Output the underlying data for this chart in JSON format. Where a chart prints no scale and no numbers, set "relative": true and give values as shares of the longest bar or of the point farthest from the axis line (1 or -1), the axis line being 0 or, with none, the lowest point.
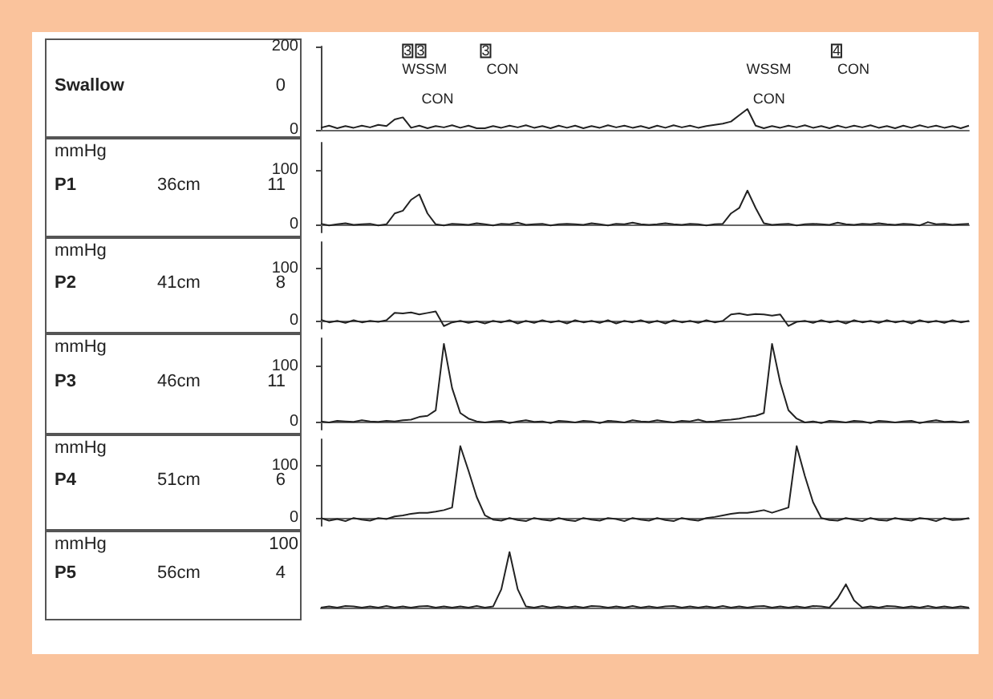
{
  "chart_data": [
    {
      "type": "line",
      "annotations": [
        "Swallow",
        "0",
        "3",
        "3",
        "WSSM",
        "CON",
        "3",
        "CON",
        "WSSM",
        "CON",
        "4",
        "CON"
      ],
      "categories": [
        null,
        null,
        null,
        null,
        null,
        null,
        null,
        null,
        null,
        null,
        null,
        null,
        null,
        null,
        null,
        null,
        null,
        null,
        null,
        null,
        null,
        null,
        null,
        null,
        null,
        null,
        null,
        null,
        null,
        null,
        null,
        null,
        null,
        null,
        null,
        null,
        null,
        null,
        null,
        null,
        null,
        null,
        null,
        null,
        null,
        null,
        null,
        null,
        null,
        null,
        null,
        null,
        null,
        null,
        null,
        null,
        null,
        null,
        null,
        null,
        null,
        null,
        null,
        null,
        null,
        null,
        null,
        null,
        null,
        null,
        null,
        null,
        null,
        null,
        null,
        null,
        null,
        null,
        null,
        null
      ],
      "color": "#222222",
      "tick_labels": "y",
      "ylim": [
        0,
        200
      ],
      "yticks": [
        0,
        200
      ],
      "values": [
        5,
        10,
        4,
        9,
        5,
        10,
        6,
        12,
        9,
        25,
        30,
        5,
        10,
        4,
        9,
        6,
        11,
        5,
        10,
        4,
        4,
        9,
        5,
        10,
        6,
        11,
        5,
        9,
        4,
        10,
        5,
        10,
        4,
        9,
        5,
        11,
        6,
        10,
        5,
        9,
        4,
        10,
        5,
        11,
        6,
        10,
        5,
        9,
        12,
        15,
        20,
        35,
        50,
        10,
        4,
        9,
        5,
        10,
        6,
        11,
        5,
        9,
        4,
        10,
        5,
        10,
        6,
        11,
        5,
        9,
        4,
        10,
        5,
        11,
        6,
        10,
        5,
        9,
        4,
        10
      ]
    },
    {
      "type": "line",
      "ylabel": "mmHg",
      "annotations": [
        "P1",
        "36cm",
        "11"
      ],
      "categories": [
        null,
        null,
        null,
        null,
        null,
        null,
        null,
        null,
        null,
        null,
        null,
        null,
        null,
        null,
        null,
        null,
        null,
        null,
        null,
        null,
        null,
        null,
        null,
        null,
        null,
        null,
        null,
        null,
        null,
        null,
        null,
        null,
        null,
        null,
        null,
        null,
        null,
        null,
        null,
        null,
        null,
        null,
        null,
        null,
        null,
        null,
        null,
        null,
        null,
        null,
        null,
        null,
        null,
        null,
        null,
        null,
        null,
        null,
        null,
        null,
        null,
        null,
        null,
        null,
        null,
        null,
        null,
        null,
        null,
        null,
        null,
        null,
        null,
        null,
        null,
        null,
        null,
        null,
        null,
        null
      ],
      "color": "#222222",
      "tick_labels": "y",
      "ylim": [
        -15,
        150
      ],
      "yticks": [
        0,
        100
      ],
      "values": [
        1,
        -2,
        0,
        2,
        -1,
        0,
        1,
        -2,
        0,
        20,
        25,
        45,
        55,
        20,
        0,
        -2,
        1,
        0,
        -1,
        2,
        0,
        -2,
        1,
        0,
        3,
        -1,
        0,
        1,
        -2,
        0,
        1,
        0,
        -1,
        2,
        0,
        -2,
        1,
        0,
        3,
        0,
        -1,
        0,
        2,
        0,
        -1,
        1,
        0,
        -2,
        0,
        1,
        20,
        30,
        62,
        30,
        2,
        -1,
        0,
        1,
        -2,
        0,
        1,
        0,
        -1,
        3,
        0,
        -1,
        1,
        0,
        2,
        0,
        -1,
        1,
        0,
        -2,
        4,
        0,
        1,
        -1,
        0,
        1
      ]
    },
    {
      "type": "line",
      "ylabel": "mmHg",
      "annotations": [
        "P2",
        "41cm",
        "8"
      ],
      "categories": [
        null,
        null,
        null,
        null,
        null,
        null,
        null,
        null,
        null,
        null,
        null,
        null,
        null,
        null,
        null,
        null,
        null,
        null,
        null,
        null,
        null,
        null,
        null,
        null,
        null,
        null,
        null,
        null,
        null,
        null,
        null,
        null,
        null,
        null,
        null,
        null,
        null,
        null,
        null,
        null,
        null,
        null,
        null,
        null,
        null,
        null,
        null,
        null,
        null,
        null,
        null,
        null,
        null,
        null,
        null,
        null,
        null,
        null,
        null,
        null,
        null,
        null,
        null,
        null,
        null,
        null,
        null,
        null,
        null,
        null,
        null,
        null,
        null,
        null,
        null,
        null,
        null,
        null,
        null,
        null
      ],
      "color": "#222222",
      "tick_labels": "y",
      "ylim": [
        -15,
        150
      ],
      "yticks": [
        0,
        100
      ],
      "values": [
        2,
        -3,
        0,
        -4,
        1,
        -3,
        0,
        -2,
        1,
        15,
        14,
        16,
        12,
        15,
        18,
        -10,
        -3,
        0,
        -4,
        -1,
        -5,
        0,
        -3,
        1,
        -5,
        0,
        -4,
        1,
        -3,
        0,
        -5,
        1,
        -3,
        0,
        -4,
        1,
        -5,
        0,
        -3,
        1,
        -4,
        0,
        -5,
        1,
        -3,
        0,
        -4,
        1,
        -3,
        0,
        12,
        14,
        11,
        13,
        12,
        10,
        12,
        -10,
        -2,
        0,
        -4,
        1,
        -3,
        0,
        -5,
        1,
        -3,
        0,
        -4,
        1,
        -3,
        0,
        -5,
        1,
        -3,
        0,
        -4,
        1,
        -3,
        0
      ]
    },
    {
      "type": "line",
      "ylabel": "mmHg",
      "annotations": [
        "P3",
        "46cm",
        "11"
      ],
      "categories": [
        null,
        null,
        null,
        null,
        null,
        null,
        null,
        null,
        null,
        null,
        null,
        null,
        null,
        null,
        null,
        null,
        null,
        null,
        null,
        null,
        null,
        null,
        null,
        null,
        null,
        null,
        null,
        null,
        null,
        null,
        null,
        null,
        null,
        null,
        null,
        null,
        null,
        null,
        null,
        null,
        null,
        null,
        null,
        null,
        null,
        null,
        null,
        null,
        null,
        null,
        null,
        null,
        null,
        null,
        null,
        null,
        null,
        null,
        null,
        null,
        null,
        null,
        null,
        null,
        null,
        null,
        null,
        null,
        null,
        null,
        null,
        null,
        null,
        null,
        null,
        null,
        null,
        null,
        null,
        null
      ],
      "color": "#222222",
      "tick_labels": "y",
      "ylim": [
        -15,
        150
      ],
      "yticks": [
        0,
        100
      ],
      "values": [
        0,
        -2,
        1,
        0,
        -1,
        2,
        0,
        -1,
        1,
        0,
        2,
        3,
        8,
        10,
        20,
        140,
        60,
        15,
        5,
        0,
        -2,
        0,
        1,
        -3,
        0,
        2,
        -1,
        0,
        -3,
        1,
        0,
        -2,
        1,
        0,
        -3,
        1,
        0,
        -2,
        2,
        0,
        -1,
        2,
        0,
        -2,
        1,
        0,
        3,
        -1,
        0,
        2,
        3,
        5,
        8,
        10,
        15,
        140,
        70,
        20,
        5,
        -2,
        0,
        -3,
        1,
        0,
        -2,
        1,
        0,
        -3,
        1,
        0,
        -2,
        0,
        1,
        -3,
        0,
        2,
        -1,
        0,
        -2,
        1
      ]
    },
    {
      "type": "line",
      "ylabel": "mmHg",
      "annotations": [
        "P4",
        "51cm",
        "6"
      ],
      "categories": [
        null,
        null,
        null,
        null,
        null,
        null,
        null,
        null,
        null,
        null,
        null,
        null,
        null,
        null,
        null,
        null,
        null,
        null,
        null,
        null,
        null,
        null,
        null,
        null,
        null,
        null,
        null,
        null,
        null,
        null,
        null,
        null,
        null,
        null,
        null,
        null,
        null,
        null,
        null,
        null,
        null,
        null,
        null,
        null,
        null,
        null,
        null,
        null,
        null,
        null,
        null,
        null,
        null,
        null,
        null,
        null,
        null,
        null,
        null,
        null,
        null,
        null,
        null,
        null,
        null,
        null,
        null,
        null,
        null,
        null,
        null,
        null,
        null,
        null,
        null,
        null,
        null,
        null,
        null,
        null
      ],
      "color": "#222222",
      "tick_labels": "y",
      "ylim": [
        -15,
        150
      ],
      "yticks": [
        0,
        100
      ],
      "values": [
        0,
        -5,
        -2,
        -6,
        0,
        -3,
        -5,
        0,
        -2,
        3,
        5,
        8,
        10,
        10,
        12,
        15,
        20,
        137,
        90,
        40,
        5,
        -3,
        -5,
        0,
        -4,
        -6,
        0,
        -3,
        -5,
        0,
        -4,
        -6,
        0,
        -3,
        -5,
        0,
        -2,
        -6,
        0,
        -3,
        -5,
        0,
        -4,
        -6,
        0,
        -3,
        -5,
        0,
        2,
        5,
        8,
        10,
        10,
        12,
        15,
        10,
        15,
        20,
        137,
        80,
        30,
        0,
        -4,
        -5,
        0,
        -3,
        -6,
        0,
        -4,
        -5,
        0,
        -3,
        -5,
        0,
        -2,
        -6,
        0,
        -4,
        -3,
        0
      ]
    },
    {
      "type": "line",
      "ylabel": "mmHg",
      "annotations": [
        "P5",
        "56cm",
        "4",
        "100"
      ],
      "relative": true,
      "categories": [
        null,
        null,
        null,
        null,
        null,
        null,
        null,
        null,
        null,
        null,
        null,
        null,
        null,
        null,
        null,
        null,
        null,
        null,
        null,
        null,
        null,
        null,
        null,
        null,
        null,
        null,
        null,
        null,
        null,
        null,
        null,
        null,
        null,
        null,
        null,
        null,
        null,
        null,
        null,
        null,
        null,
        null,
        null,
        null,
        null,
        null,
        null,
        null,
        null,
        null,
        null,
        null,
        null,
        null,
        null,
        null,
        null,
        null,
        null,
        null,
        null,
        null,
        null,
        null,
        null,
        null,
        null,
        null,
        null,
        null,
        null,
        null,
        null,
        null,
        null,
        null,
        null,
        null,
        null,
        null
      ],
      "color": "#222222",
      "values": [
        0,
        0.02,
        0,
        0.03,
        0.02,
        0,
        0.02,
        0,
        0.03,
        0,
        0.02,
        0,
        0.02,
        0.03,
        0,
        0.02,
        0,
        0.02,
        0,
        0.03,
        0,
        0.02,
        0.33,
        1,
        0.33,
        0.02,
        0,
        0.03,
        0,
        0.02,
        0,
        0.02,
        0,
        0.03,
        0.02,
        0,
        0.02,
        0,
        0.03,
        0,
        0.02,
        0,
        0.02,
        0.03,
        0,
        0.02,
        0,
        0.02,
        0,
        0.03,
        0,
        0.02,
        0,
        0.02,
        0.03,
        0,
        0.02,
        0,
        0.02,
        0,
        0.03,
        0.02,
        0,
        0.17,
        0.42,
        0.13,
        0,
        0.02,
        0,
        0.03,
        0.02,
        0,
        0.02,
        0,
        0.03,
        0,
        0.02,
        0,
        0.02,
        0
      ]
    }
  ]
}
